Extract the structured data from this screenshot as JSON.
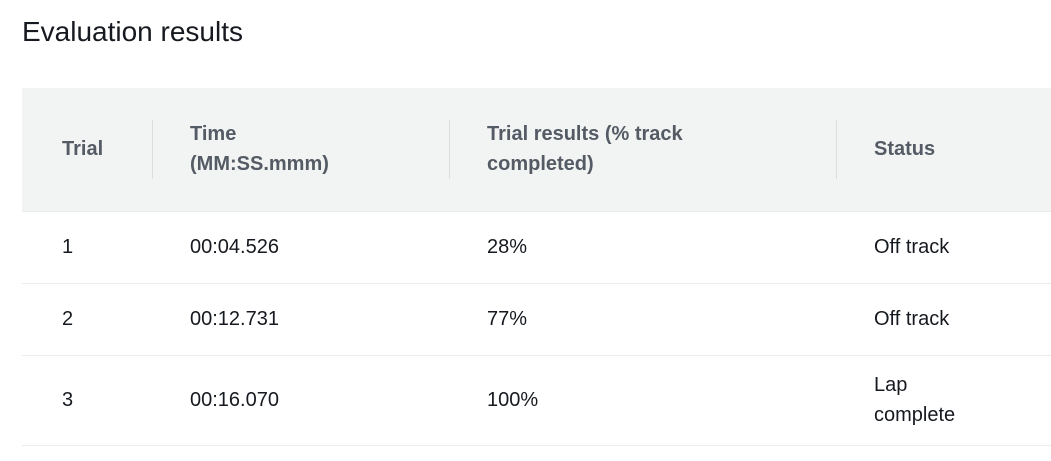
{
  "header": {
    "title": "Evaluation results"
  },
  "table": {
    "columns": [
      "Trial",
      "Time (MM:SS.mmm)",
      "Trial results (% track completed)",
      "Status"
    ],
    "rows": [
      [
        "1",
        "00:04.526",
        "28%",
        "Off track"
      ],
      [
        "2",
        "00:12.731",
        "77%",
        "Off track"
      ],
      [
        "3",
        "00:16.070",
        "100%",
        "Lap complete"
      ]
    ]
  }
}
